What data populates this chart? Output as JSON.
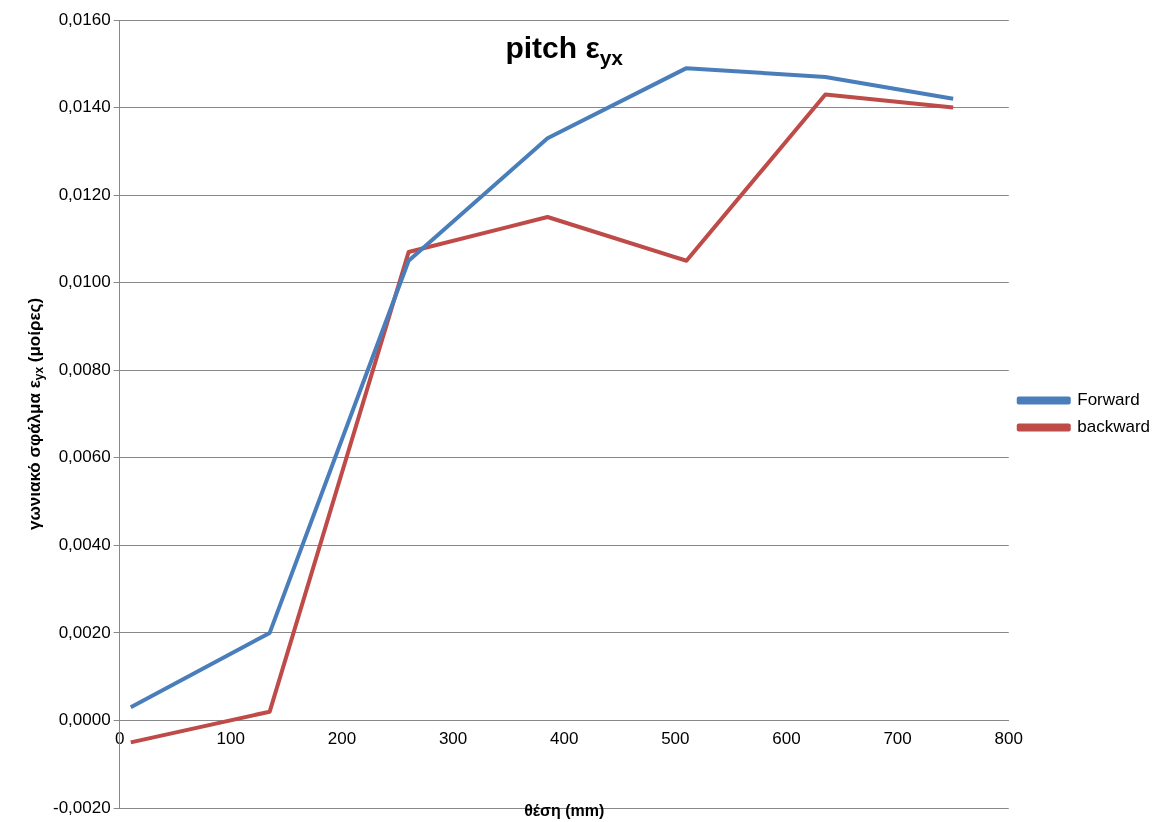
{
  "chart_data": {
    "type": "line",
    "title": "pitch ε$_{yx}$",
    "xlabel": "θέση (mm)",
    "ylabel": "γωνιακό σφάλμα ε$_{yx}$ (μοίρες)",
    "x": [
      10,
      135,
      260,
      385,
      510,
      635,
      750
    ],
    "series": [
      {
        "name": "Forward",
        "color": "#4a7ebb",
        "values": [
          0.0003,
          0.002,
          0.0105,
          0.0133,
          0.0149,
          0.0147,
          0.0142
        ]
      },
      {
        "name": "backward",
        "color": "#be4b48",
        "values": [
          -0.0005,
          0.0002,
          0.0107,
          0.0115,
          0.0105,
          0.0143,
          0.014
        ]
      }
    ],
    "xlim": [
      0,
      800
    ],
    "xticks": [
      0,
      100,
      200,
      300,
      400,
      500,
      600,
      700,
      800
    ],
    "ylim": [
      -0.002,
      0.016
    ],
    "yticks": [
      {
        "value": -0.002,
        "label": "-0,0020"
      },
      {
        "value": 0,
        "label": "0,0000"
      },
      {
        "value": 0.002,
        "label": "0,0020"
      },
      {
        "value": 0.004,
        "label": "0,0040"
      },
      {
        "value": 0.006,
        "label": "0,0060"
      },
      {
        "value": 0.008,
        "label": "0,0080"
      },
      {
        "value": 0.01,
        "label": "0,0100"
      },
      {
        "value": 0.012,
        "label": "0,0120"
      },
      {
        "value": 0.014,
        "label": "0,0140"
      },
      {
        "value": 0.016,
        "label": "0,0160"
      }
    ],
    "grid": "y",
    "legend": "right",
    "marker": "none",
    "line_style": "solid"
  }
}
